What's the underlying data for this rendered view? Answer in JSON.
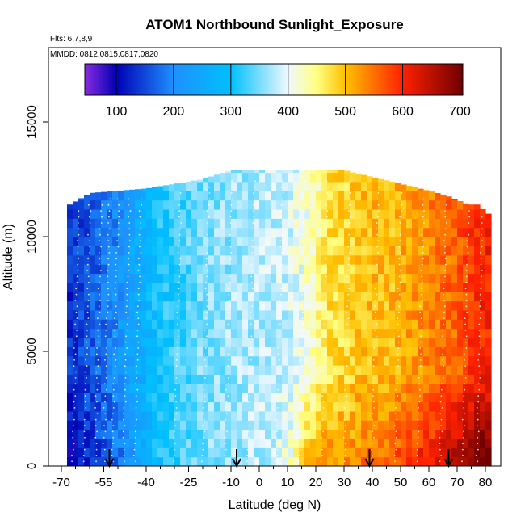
{
  "chart_data": {
    "type": "heatmap",
    "title": "ATOM1 Northbound Sunlight_Exposure",
    "subtitle_flights": "Flts: 6,7,8,9",
    "subtitle_dates": "MMDD: 0812,0815,0817,0820",
    "xlabel": "Latitude (deg N)",
    "ylabel": "Altitude (m)",
    "x_ticks": [
      -70,
      -55,
      -40,
      -25,
      -10,
      0,
      10,
      20,
      30,
      40,
      50,
      60,
      70,
      80
    ],
    "y_ticks": [
      0,
      5000,
      10000,
      15000
    ],
    "y_tick_labels": [
      "0",
      "5000",
      "10000",
      "15000"
    ],
    "xlim": [
      -70,
      82
    ],
    "ylim": [
      0,
      17500
    ],
    "colorbar": {
      "ticks": [
        100,
        200,
        300,
        400,
        500,
        600,
        700
      ],
      "range": [
        45,
        705
      ],
      "stops": [
        {
          "v": 45,
          "color": "#8a2be2"
        },
        {
          "v": 100,
          "color": "#0000b4"
        },
        {
          "v": 200,
          "color": "#1e90ff"
        },
        {
          "v": 300,
          "color": "#00c0ff"
        },
        {
          "v": 400,
          "color": "#f0f8ff"
        },
        {
          "v": 450,
          "color": "#ffff80"
        },
        {
          "v": 500,
          "color": "#ffc000"
        },
        {
          "v": 600,
          "color": "#ff2000"
        },
        {
          "v": 705,
          "color": "#700000"
        }
      ]
    },
    "field_profile": {
      "lat_nodes": [
        -68,
        -60,
        -52,
        -44,
        -36,
        -28,
        -20,
        -10,
        0,
        10,
        18,
        24,
        30,
        38,
        46,
        54,
        62,
        70,
        78
      ],
      "value_at_nodes": [
        130,
        160,
        190,
        250,
        300,
        330,
        350,
        365,
        375,
        385,
        420,
        470,
        480,
        500,
        500,
        520,
        540,
        560,
        600
      ],
      "low_altitude_offset": [
        -40,
        -30,
        -30,
        -20,
        0,
        0,
        0,
        0,
        0,
        20,
        80,
        60,
        40,
        50,
        60,
        70,
        80,
        100,
        120
      ]
    },
    "coverage_top": {
      "lat": [
        -67,
        -64,
        -60,
        -50,
        -40,
        -30,
        -20,
        -10,
        0,
        10,
        20,
        30,
        40,
        50,
        60,
        66,
        70,
        74,
        78,
        80
      ],
      "alt": [
        11400,
        11600,
        11900,
        12000,
        12100,
        12300,
        12500,
        12900,
        12900,
        12900,
        12900,
        12900,
        12600,
        12300,
        12000,
        11800,
        11600,
        11400,
        11400,
        11000
      ]
    },
    "arrows_lat": [
      -53,
      -8,
      39,
      67
    ]
  }
}
